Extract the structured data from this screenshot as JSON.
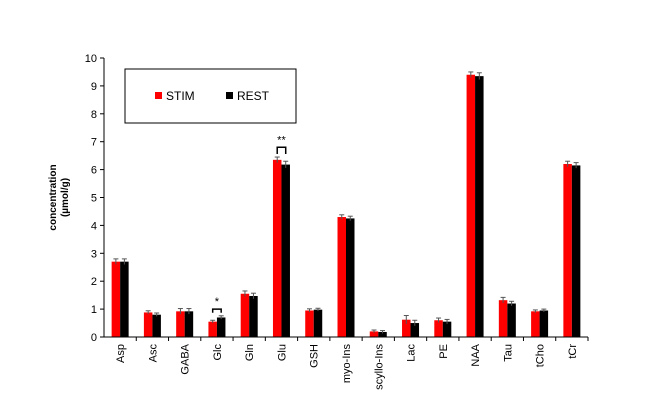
{
  "chart_data": {
    "type": "bar",
    "title": "",
    "xlabel": "",
    "ylabel_line1": "concentration",
    "ylabel_line2": "(µmol/g)",
    "ylim": [
      0,
      10
    ],
    "yticks": [
      "0",
      "1",
      "2",
      "3",
      "4",
      "5",
      "6",
      "7",
      "8",
      "9",
      "10"
    ],
    "grid": false,
    "legend_position": "top-left",
    "categories": [
      "Asp",
      "Asc",
      "GABA",
      "Glc",
      "Gln",
      "Glu",
      "GSH",
      "myo-Ins",
      "scyllo-Ins",
      "Lac",
      "PE",
      "NAA",
      "Tau",
      "tCho",
      "tCr"
    ],
    "series": [
      {
        "name": "STIM",
        "color": "#ff0000",
        "values": [
          2.7,
          0.88,
          0.92,
          0.55,
          1.55,
          6.35,
          0.95,
          4.3,
          0.2,
          0.62,
          0.6,
          9.4,
          1.32,
          0.92,
          6.2
        ],
        "errors": [
          0.1,
          0.06,
          0.1,
          0.05,
          0.1,
          0.1,
          0.06,
          0.08,
          0.05,
          0.15,
          0.08,
          0.1,
          0.1,
          0.05,
          0.1
        ]
      },
      {
        "name": "REST",
        "color": "#000000",
        "values": [
          2.7,
          0.8,
          0.92,
          0.7,
          1.47,
          6.18,
          0.98,
          4.25,
          0.18,
          0.5,
          0.55,
          9.35,
          1.2,
          0.95,
          6.15
        ],
        "errors": [
          0.1,
          0.06,
          0.1,
          0.06,
          0.1,
          0.12,
          0.05,
          0.08,
          0.05,
          0.1,
          0.08,
          0.12,
          0.08,
          0.05,
          0.1
        ]
      }
    ],
    "annotations": [
      {
        "category": "Glc",
        "label": "*",
        "y": 1.0
      },
      {
        "category": "Glu",
        "label": "**",
        "y": 6.8
      }
    ]
  }
}
